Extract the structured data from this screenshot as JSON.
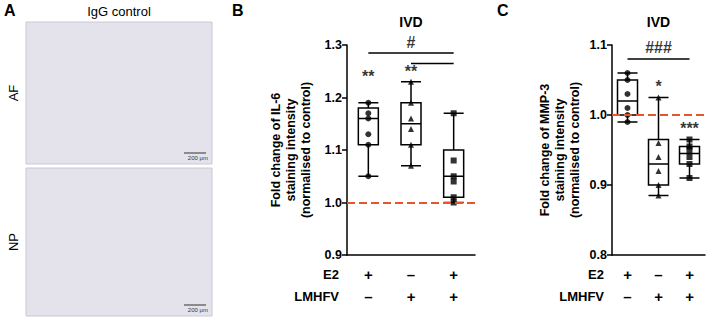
{
  "panel_a": {
    "label": "A",
    "title": "IgG control",
    "images": [
      {
        "label": "AF",
        "scale_bar": "200 μm"
      },
      {
        "label": "NP",
        "scale_bar": "200 μm"
      }
    ]
  },
  "chart_data": [
    {
      "type": "boxplot",
      "panel": "B",
      "title": "IVD",
      "y_label": "Fold change of IL-6\nstaining intensity\n(normalised to control)",
      "categories": [
        "+\n–",
        "–\n+",
        "+\n+"
      ],
      "category_rows": [
        "E2",
        "LMHFV"
      ],
      "ylim": [
        0.9,
        1.3
      ],
      "yticks": [
        0.9,
        {
          "value": 1,
          "label": "1.0"
        },
        1.1,
        1.2,
        1.3
      ],
      "grid": false,
      "color": "#000000",
      "boxes": [
        [
          1.05,
          1.11,
          1.16,
          1.18,
          1.19
        ],
        [
          1.07,
          1.11,
          1.15,
          1.19,
          1.23
        ],
        [
          1.0,
          1.01,
          1.05,
          1.1,
          1.17
        ]
      ],
      "points": [
        {
          "marker": "circle",
          "color": "#000000",
          "values": [
            1.19,
            1.17,
            1.16,
            1.13,
            1.11,
            1.05
          ]
        },
        {
          "marker": "triangle",
          "color": "#000000",
          "values": [
            1.23,
            1.19,
            1.16,
            1.14,
            1.11,
            1.07
          ]
        },
        {
          "marker": "square",
          "color": "#000000",
          "values": [
            1.17,
            1.08,
            1.05,
            1.04,
            1.01,
            1.0
          ]
        }
      ],
      "reference_line": {
        "value": 1,
        "color": "#e4572e",
        "line_style": "dashed"
      },
      "brackets": [
        {
          "from": 0,
          "to": 2,
          "y": 1.285
        },
        {
          "from": 1,
          "to": 2,
          "y": 1.265
        }
      ],
      "annotations": [
        {
          "text": "**",
          "category": 0,
          "y": 1.225
        },
        {
          "text": "**",
          "category": 1,
          "y": 1.235
        },
        {
          "text": "#",
          "category": 1,
          "y": 1.29
        }
      ]
    },
    {
      "type": "boxplot",
      "panel": "C",
      "title": "IVD",
      "y_label": "Fold change of MMP-3\nstaining intensity\n(normalised to control)",
      "categories": [
        "+\n–",
        "–\n+",
        "+\n+"
      ],
      "category_rows": [
        "E2",
        "LMHFV"
      ],
      "ylim": [
        0.8,
        1.1
      ],
      "yticks": [
        0.8,
        0.9,
        {
          "value": 1,
          "label": "1.0"
        },
        1.1
      ],
      "grid": false,
      "color": "#000000",
      "boxes": [
        [
          0.99,
          1.0,
          1.02,
          1.05,
          1.06
        ],
        [
          0.885,
          0.9,
          0.93,
          0.965,
          1.025
        ],
        [
          0.91,
          0.93,
          0.945,
          0.955,
          0.965
        ]
      ],
      "points": [
        {
          "marker": "circle",
          "color": "#000000",
          "values": [
            1.06,
            1.05,
            1.03,
            1.01,
            1.0,
            0.99
          ]
        },
        {
          "marker": "triangle",
          "color": "#000000",
          "values": [
            1.025,
            0.96,
            0.94,
            0.92,
            0.9,
            0.885
          ]
        },
        {
          "marker": "square",
          "color": "#000000",
          "values": [
            0.965,
            0.955,
            0.95,
            0.94,
            0.93,
            0.91
          ]
        }
      ],
      "reference_line": {
        "value": 1,
        "color": "#e4572e",
        "line_style": "dashed"
      },
      "brackets": [
        {
          "from": 0,
          "to": 2,
          "y": 1.08
        }
      ],
      "annotations": [
        {
          "text": "*",
          "category": 1,
          "y": 1.03
        },
        {
          "text": "***",
          "category": 2,
          "y": 0.97
        },
        {
          "text": "###",
          "category": 1,
          "y": 1.085
        }
      ]
    }
  ]
}
